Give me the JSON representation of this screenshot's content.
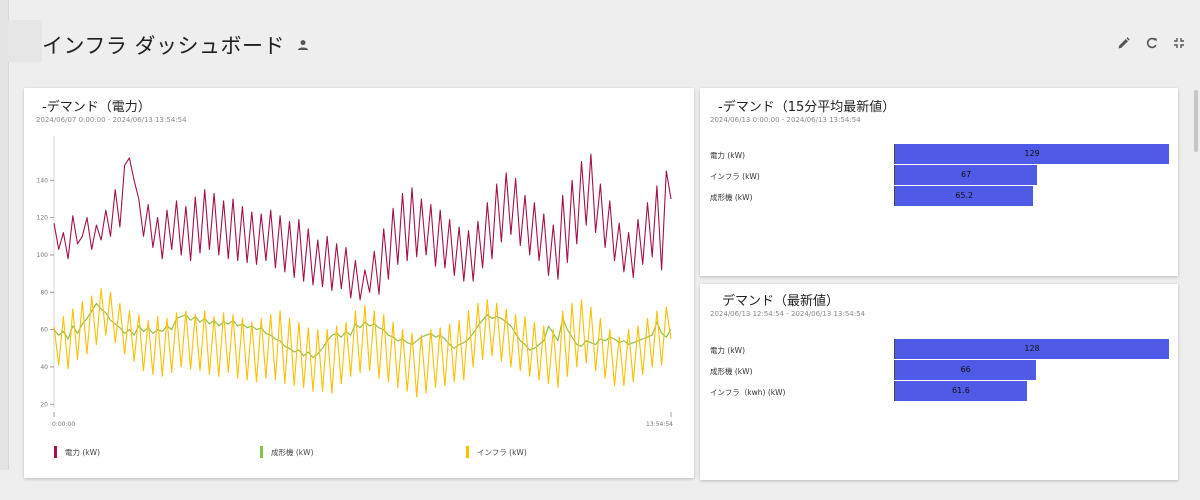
{
  "dashboard": {
    "title": "インフラ ダッシュボード",
    "toolbar": {
      "edit_icon": "pencil-icon",
      "refresh_icon": "refresh-icon",
      "exit_fullscreen_icon": "exit-fullscreen-icon"
    }
  },
  "line_card": {
    "title": "-デマンド（電力）",
    "range": "2024/06/07 0:00:00 - 2024/06/13 13:54:54",
    "legend": [
      {
        "label": "電力 (kW)",
        "color": "#a3104f"
      },
      {
        "label": "成形機 (kW)",
        "color": "#8bc34a"
      },
      {
        "label": "インフラ (kW)",
        "color": "#ffbf00"
      }
    ]
  },
  "bar_card_top": {
    "title": "-デマンド（15分平均最新値）",
    "range": "2024/06/13 0:00:00 - 2024/06/13 13:54:54",
    "bars": [
      {
        "label": "電力 (kW)",
        "value": 129,
        "value_text": "129"
      },
      {
        "label": "インフラ (kW)",
        "value": 67,
        "value_text": "67"
      },
      {
        "label": "成形機 (kW)",
        "value": 65.2,
        "value_text": "65.2"
      }
    ]
  },
  "bar_card_bottom": {
    "title": "デマンド（最新値）",
    "range": "2024/06/13 12:54:54 - 2024/06/13 13:54:54",
    "bars": [
      {
        "label": "電力 (kW)",
        "value": 128,
        "value_text": "128"
      },
      {
        "label": "成形機 (kW)",
        "value": 66,
        "value_text": "66"
      },
      {
        "label": "インフラ（kwh) (kW)",
        "value": 61.6,
        "value_text": "61.6"
      }
    ]
  },
  "chart_data": {
    "type": "line",
    "x_tick_labels": [
      "0:00:00",
      "13:54:54"
    ],
    "y_ticks": [
      20,
      40,
      60,
      80,
      100,
      120,
      140
    ],
    "ylim": [
      18,
      160
    ],
    "grid": false,
    "legend_position": "bottom",
    "series": [
      {
        "name": "電力 (kW)",
        "color": "#a3104f",
        "values": [
          117,
          103,
          112,
          98,
          121,
          106,
          110,
          120,
          103,
          116,
          108,
          124,
          110,
          135,
          115,
          148,
          152,
          140,
          130,
          110,
          127,
          104,
          120,
          98,
          124,
          103,
          129,
          100,
          126,
          97,
          131,
          101,
          135,
          103,
          133,
          100,
          129,
          98,
          130,
          97,
          126,
          96,
          123,
          95,
          122,
          97,
          124,
          93,
          121,
          91,
          118,
          88,
          119,
          86,
          114,
          84,
          108,
          83,
          110,
          81,
          106,
          82,
          104,
          77,
          97,
          76,
          92,
          80,
          102,
          79,
          114,
          87,
          125,
          95,
          133,
          97,
          136,
          99,
          130,
          100,
          127,
          94,
          124,
          93,
          119,
          89,
          115,
          86,
          113,
          86,
          118,
          93,
          128,
          98,
          138,
          107,
          144,
          111,
          141,
          105,
          132,
          100,
          128,
          97,
          122,
          89,
          116,
          87,
          132,
          96,
          140,
          106,
          150,
          116,
          154,
          112,
          138,
          104,
          129,
          97,
          117,
          91,
          112,
          88,
          119,
          95,
          128,
          99,
          137,
          92,
          145,
          130
        ]
      },
      {
        "name": "成形機 (kW)",
        "color": "#8bc34a",
        "values": [
          60,
          57,
          59,
          55,
          62,
          58,
          63,
          66,
          70,
          74,
          71,
          69,
          65,
          63,
          61,
          58,
          60,
          57,
          62,
          59,
          61,
          58,
          60,
          59,
          62,
          60,
          66,
          67,
          68,
          65,
          67,
          64,
          66,
          63,
          65,
          62,
          64,
          63,
          65,
          62,
          63,
          61,
          62,
          60,
          61,
          58,
          57,
          55,
          54,
          51,
          50,
          48,
          49,
          46,
          48,
          45,
          47,
          50,
          54,
          57,
          58,
          56,
          59,
          57,
          63,
          61,
          64,
          62,
          63,
          61,
          60,
          57,
          56,
          54,
          55,
          53,
          52,
          54,
          56,
          57,
          58,
          56,
          57,
          55,
          52,
          50,
          52,
          53,
          55,
          58,
          62,
          65,
          68,
          66,
          67,
          66,
          64,
          62,
          58,
          54,
          52,
          49,
          50,
          52,
          54,
          62,
          58,
          54,
          66,
          60,
          56,
          52,
          51,
          54,
          53,
          52,
          55,
          54,
          56,
          55,
          53,
          54,
          52,
          53,
          54,
          55,
          56,
          57,
          64,
          58,
          56,
          60
        ]
      },
      {
        "name": "インフラ (kW)",
        "color": "#ffbf00",
        "values": [
          62,
          41,
          67,
          39,
          71,
          44,
          75,
          47,
          78,
          52,
          82,
          57,
          80,
          53,
          74,
          47,
          70,
          43,
          68,
          38,
          65,
          36,
          67,
          35,
          66,
          37,
          69,
          40,
          70,
          39,
          68,
          38,
          70,
          36,
          67,
          35,
          69,
          37,
          68,
          34,
          66,
          33,
          64,
          32,
          66,
          34,
          68,
          33,
          70,
          31,
          66,
          30,
          64,
          29,
          61,
          27,
          60,
          27,
          60,
          26,
          62,
          31,
          64,
          35,
          70,
          37,
          73,
          38,
          70,
          34,
          68,
          32,
          64,
          29,
          60,
          27,
          58,
          24,
          57,
          26,
          60,
          29,
          61,
          30,
          63,
          32,
          65,
          33,
          70,
          40,
          74,
          44,
          76,
          46,
          74,
          43,
          71,
          40,
          68,
          38,
          67,
          35,
          64,
          33,
          62,
          31,
          60,
          29,
          70,
          35,
          74,
          40,
          76,
          42,
          72,
          38,
          66,
          34,
          60,
          30,
          56,
          30,
          60,
          32,
          62,
          36,
          66,
          40,
          70,
          41,
          72,
          55
        ]
      }
    ]
  }
}
